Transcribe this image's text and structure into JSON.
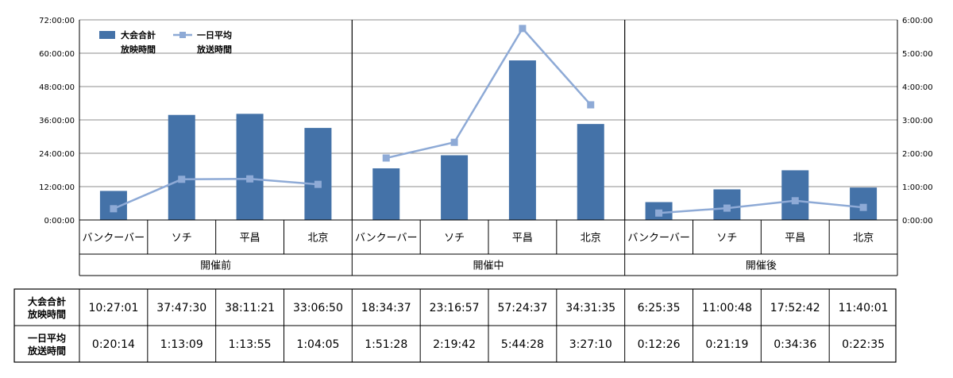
{
  "chart_data": {
    "type": "bar",
    "categories": [
      "バンクーバー",
      "ソチ",
      "平昌",
      "北京"
    ],
    "groups": [
      "開催前",
      "開催中",
      "開催後"
    ],
    "y_left_ticks": [
      "0:00:00",
      "12:00:00",
      "24:00:00",
      "36:00:00",
      "48:00:00",
      "60:00:00",
      "72:00:00"
    ],
    "y_right_ticks": [
      "0:00:00",
      "1:00:00",
      "2:00:00",
      "3:00:00",
      "4:00:00",
      "5:00:00",
      "6:00:00"
    ],
    "ylim_left_hours": [
      0,
      72
    ],
    "ylim_right_hours": [
      0,
      6
    ],
    "series": [
      {
        "name": "大会合計\n放映時間",
        "axis": "left",
        "type": "bar",
        "color": "#4472a8",
        "labels": [
          "10:27:01",
          "37:47:30",
          "38:11:21",
          "33:06:50",
          "18:34:37",
          "23:16:57",
          "57:24:37",
          "34:31:35",
          "6:25:35",
          "11:00:48",
          "17:52:42",
          "11:40:01"
        ]
      },
      {
        "name": "一日平均\n放送時間",
        "axis": "right",
        "type": "line",
        "color": "#8eaad6",
        "labels": [
          "0:20:14",
          "1:13:09",
          "1:13:55",
          "1:04:05",
          "1:51:28",
          "2:19:42",
          "5:44:28",
          "3:27:10",
          "0:12:26",
          "0:21:19",
          "0:34:36",
          "0:22:35"
        ]
      }
    ],
    "table_row_headers": [
      "大会合計\n放映時間",
      "一日平均\n放送時間"
    ],
    "legend_position": "top-left",
    "grid": true
  }
}
